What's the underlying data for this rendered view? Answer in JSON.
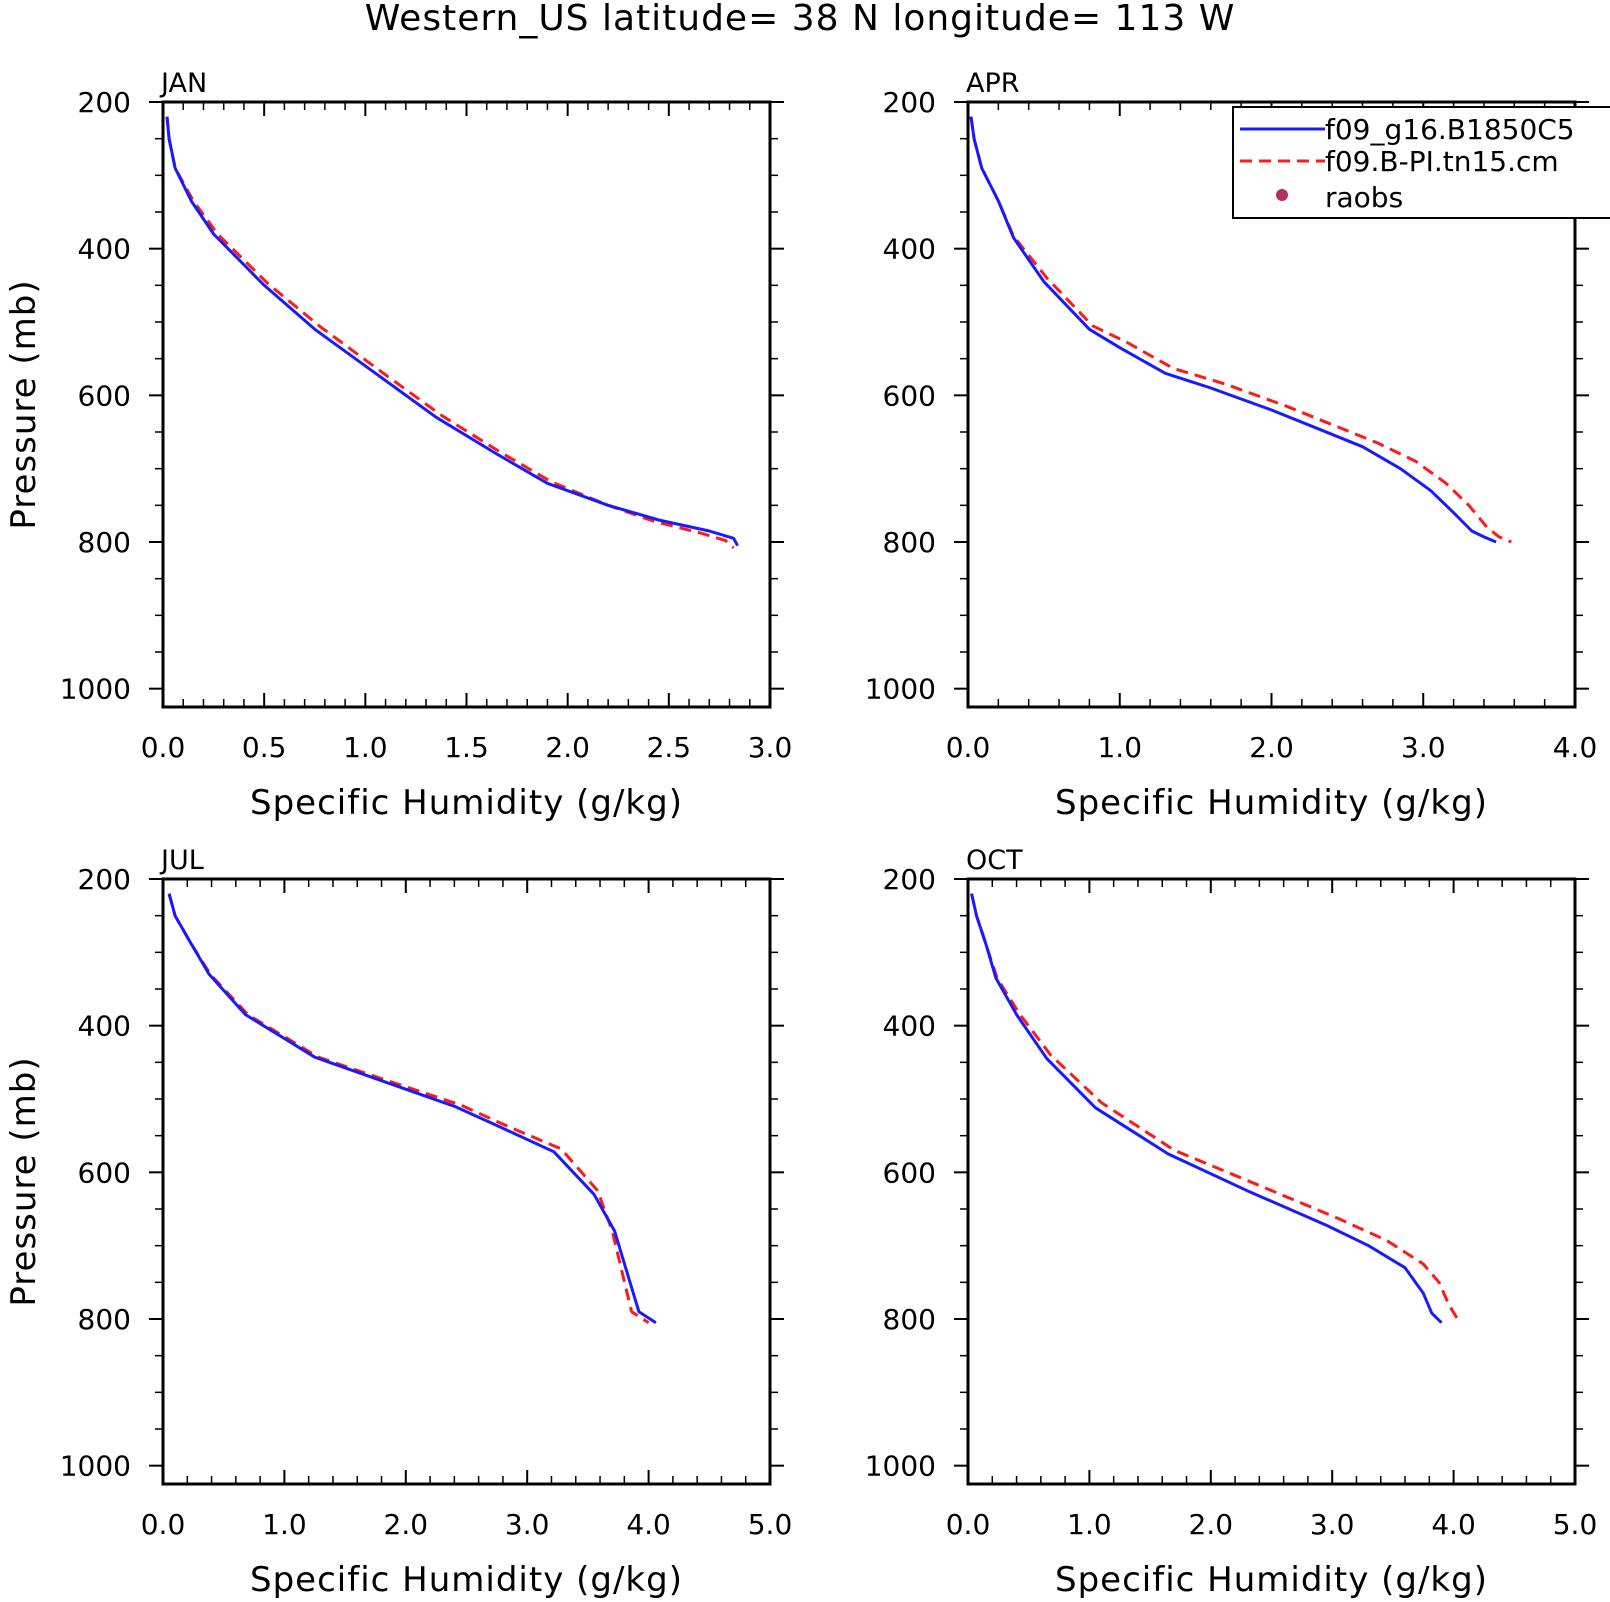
{
  "figure": {
    "title": "Western_US  latitude= 38 N longitude= 113 W",
    "colors": {
      "series1": "#1a1aff",
      "series2": "#ff1a1a",
      "obs": "#b03060",
      "axes": "#000000"
    },
    "legend": {
      "placement": "top-right of APR panel",
      "entries": [
        {
          "label": "f09_g16.B1850C5",
          "style": "solid",
          "color": "#1a1aff"
        },
        {
          "label": "f09.B-PI.tn15.cm",
          "style": "dashed",
          "color": "#ff1a1a"
        },
        {
          "label": "raobs",
          "style": "dot",
          "color": "#b03060"
        }
      ]
    }
  },
  "chart_data": [
    {
      "type": "line",
      "title": "JAN",
      "xlabel": "Specific Humidity (g/kg)",
      "ylabel": "Pressure (mb)",
      "xlim": [
        0,
        3.0
      ],
      "ylim": [
        200,
        1025
      ],
      "y_inverted": true,
      "xticks": [
        "0.0",
        "0.5",
        "1.0",
        "1.5",
        "2.0",
        "2.5",
        "3.0"
      ],
      "yticks": [
        "200",
        "400",
        "600",
        "800",
        "1000"
      ],
      "series": [
        {
          "name": "f09_g16.B1850C5",
          "x": [
            0.02,
            0.03,
            0.06,
            0.14,
            0.25,
            0.5,
            0.75,
            1.05,
            1.35,
            1.65,
            1.9,
            2.2,
            2.45,
            2.7,
            2.82,
            2.84
          ],
          "y": [
            220,
            250,
            290,
            335,
            380,
            450,
            510,
            570,
            630,
            680,
            720,
            750,
            770,
            785,
            795,
            805
          ]
        },
        {
          "name": "f09.B-PI.tn15.cm",
          "x": [
            0.02,
            0.03,
            0.06,
            0.15,
            0.27,
            0.52,
            0.78,
            1.08,
            1.38,
            1.67,
            1.92,
            2.2,
            2.43,
            2.66,
            2.78,
            2.82
          ],
          "y": [
            220,
            250,
            290,
            335,
            380,
            448,
            507,
            568,
            628,
            678,
            718,
            750,
            772,
            788,
            798,
            808
          ]
        }
      ]
    },
    {
      "type": "line",
      "title": "APR",
      "xlabel": "Specific Humidity (g/kg)",
      "ylabel": "",
      "xlim": [
        0,
        4.0
      ],
      "ylim": [
        200,
        1025
      ],
      "y_inverted": true,
      "xticks": [
        "0.0",
        "1.0",
        "2.0",
        "3.0",
        "4.0"
      ],
      "yticks": [
        "200",
        "400",
        "600",
        "800",
        "1000"
      ],
      "series": [
        {
          "name": "f09_g16.B1850C5",
          "x": [
            0.02,
            0.04,
            0.09,
            0.2,
            0.3,
            0.5,
            0.8,
            1.0,
            1.3,
            1.6,
            2.0,
            2.3,
            2.6,
            2.85,
            3.05,
            3.2,
            3.32,
            3.4,
            3.48
          ],
          "y": [
            220,
            250,
            290,
            335,
            385,
            445,
            510,
            535,
            570,
            590,
            620,
            645,
            670,
            700,
            730,
            760,
            785,
            793,
            800
          ]
        },
        {
          "name": "f09.B-PI.tn15.cm",
          "x": [
            0.02,
            0.04,
            0.09,
            0.2,
            0.3,
            0.52,
            0.82,
            1.05,
            1.35,
            1.7,
            2.1,
            2.4,
            2.7,
            2.95,
            3.15,
            3.3,
            3.42,
            3.5,
            3.58
          ],
          "y": [
            220,
            250,
            290,
            335,
            383,
            440,
            505,
            528,
            563,
            585,
            615,
            640,
            665,
            690,
            720,
            750,
            780,
            793,
            800
          ]
        }
      ]
    },
    {
      "type": "line",
      "title": "JUL",
      "xlabel": "Specific Humidity (g/kg)",
      "ylabel": "Pressure (mb)",
      "xlim": [
        0,
        5.0
      ],
      "ylim": [
        200,
        1025
      ],
      "y_inverted": true,
      "xticks": [
        "0.0",
        "1.0",
        "2.0",
        "3.0",
        "4.0",
        "5.0"
      ],
      "yticks": [
        "200",
        "400",
        "600",
        "800",
        "1000"
      ],
      "series": [
        {
          "name": "f09_g16.B1850C5",
          "x": [
            0.05,
            0.1,
            0.22,
            0.38,
            0.68,
            1.25,
            1.8,
            2.4,
            2.8,
            3.22,
            3.55,
            3.72,
            3.82,
            3.92,
            4.06
          ],
          "y": [
            220,
            250,
            285,
            330,
            385,
            443,
            475,
            510,
            540,
            572,
            630,
            680,
            735,
            790,
            805
          ]
        },
        {
          "name": "f09.B-PI.tn15.cm",
          "x": [
            0.05,
            0.1,
            0.22,
            0.39,
            0.7,
            1.28,
            1.85,
            2.45,
            2.85,
            3.28,
            3.58,
            3.7,
            3.78,
            3.86,
            4.0
          ],
          "y": [
            220,
            250,
            285,
            330,
            385,
            443,
            475,
            508,
            538,
            568,
            625,
            680,
            735,
            790,
            805
          ]
        }
      ]
    },
    {
      "type": "line",
      "title": "OCT",
      "xlabel": "Specific Humidity (g/kg)",
      "ylabel": "",
      "xlim": [
        0,
        5.0
      ],
      "ylim": [
        200,
        1025
      ],
      "y_inverted": true,
      "xticks": [
        "0.0",
        "1.0",
        "2.0",
        "3.0",
        "4.0",
        "5.0"
      ],
      "yticks": [
        "200",
        "400",
        "600",
        "800",
        "1000"
      ],
      "series": [
        {
          "name": "f09_g16.B1850C5",
          "x": [
            0.03,
            0.07,
            0.15,
            0.23,
            0.4,
            0.65,
            1.05,
            1.65,
            2.3,
            2.95,
            3.3,
            3.6,
            3.75,
            3.82,
            3.9
          ],
          "y": [
            220,
            250,
            290,
            335,
            385,
            445,
            512,
            575,
            625,
            672,
            700,
            730,
            765,
            792,
            805
          ]
        },
        {
          "name": "f09.B-PI.tn15.cm",
          "x": [
            0.03,
            0.07,
            0.15,
            0.24,
            0.42,
            0.68,
            1.1,
            1.7,
            2.4,
            3.05,
            3.45,
            3.75,
            3.88,
            3.96,
            4.05
          ],
          "y": [
            220,
            250,
            290,
            335,
            383,
            440,
            505,
            570,
            618,
            663,
            693,
            725,
            750,
            780,
            805
          ]
        }
      ]
    }
  ]
}
